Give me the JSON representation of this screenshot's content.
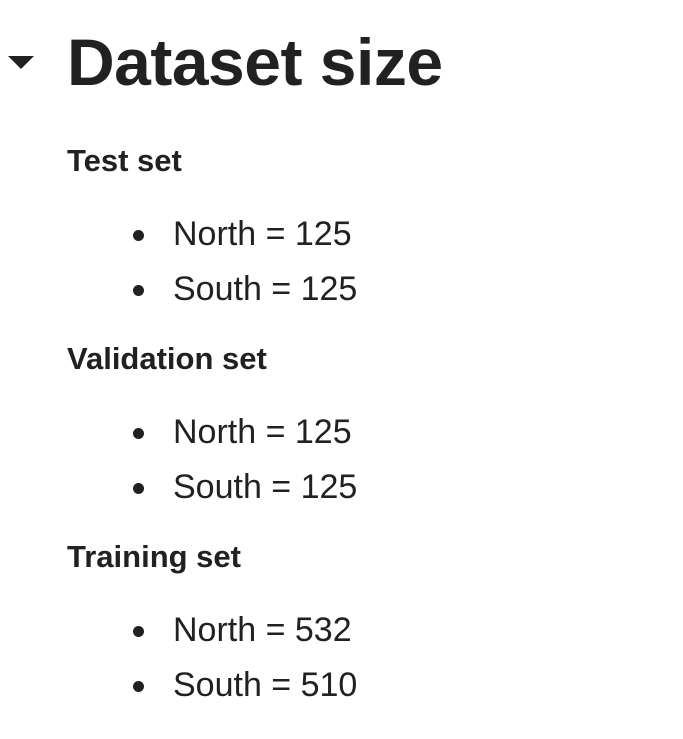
{
  "title": "Dataset size",
  "sections": [
    {
      "heading": "Test set",
      "items": [
        "North = 125",
        "South = 125"
      ]
    },
    {
      "heading": "Validation set",
      "items": [
        "North = 125",
        "South = 125"
      ]
    },
    {
      "heading": "Training set",
      "items": [
        "North = 532",
        "South = 510"
      ]
    }
  ],
  "icons": {
    "collapse_toggle": "caret-down-icon"
  },
  "colors": {
    "text": "#212121",
    "background": "#ffffff"
  }
}
